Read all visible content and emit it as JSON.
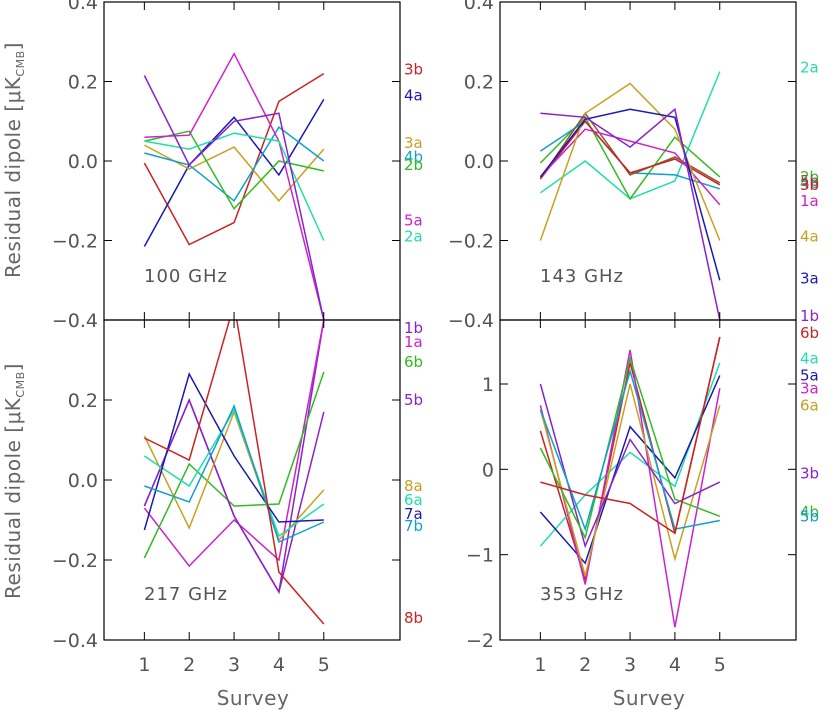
{
  "figure": {
    "xlabel": "Survey",
    "ylabel": "Residual dipole [μK",
    "ylabel_sub": "CMB",
    "ylabel_end": "]"
  },
  "chart_data": [
    {
      "type": "line",
      "title": "100 GHz",
      "x": [
        1,
        2,
        3,
        4,
        5
      ],
      "ylim": [
        -0.4,
        0.4
      ],
      "yticks": [
        -0.4,
        -0.2,
        0.0,
        0.2,
        0.4
      ],
      "ytick_labels": [
        "−0.4",
        "−0.2",
        "0.0",
        "0.2",
        "0.4"
      ],
      "xticks": [
        1,
        2,
        3,
        4,
        5
      ],
      "xtick_labels": [
        "",
        "",
        "",
        "",
        ""
      ],
      "series": [
        {
          "name": "3b",
          "color": "#cc2222",
          "values": [
            -0.005,
            -0.21,
            -0.155,
            0.15,
            0.22
          ],
          "label_y": 0.23
        },
        {
          "name": "4a",
          "color": "#1a1ab0",
          "values": [
            -0.215,
            -0.01,
            0.11,
            -0.035,
            0.155
          ],
          "label_y": 0.165
        },
        {
          "name": "3a",
          "color": "#c9a020",
          "values": [
            0.04,
            -0.02,
            0.035,
            -0.1,
            0.03
          ],
          "label_y": 0.045
        },
        {
          "name": "4b",
          "color": "#11a0cc",
          "values": [
            0.02,
            -0.01,
            -0.1,
            0.085,
            0.0
          ],
          "label_y": 0.01
        },
        {
          "name": "2b",
          "color": "#33bb22",
          "values": [
            0.05,
            0.075,
            -0.12,
            0.0,
            -0.025
          ],
          "label_y": -0.01
        },
        {
          "name": "5a",
          "color": "#cc22cc",
          "values": [
            0.06,
            0.065,
            0.27,
            0.05,
            -0.4
          ],
          "label_y": -0.15
        },
        {
          "name": "2a",
          "color": "#22ddaa",
          "values": [
            0.05,
            0.03,
            0.07,
            0.05,
            -0.2
          ],
          "label_y": -0.19
        },
        {
          "name": "",
          "color": "#8822cc",
          "values": [
            0.215,
            -0.01,
            0.1,
            0.12,
            -0.4
          ],
          "label_y": null
        }
      ]
    },
    {
      "type": "line",
      "title": "143 GHz",
      "x": [
        1,
        2,
        3,
        4,
        5
      ],
      "ylim": [
        -0.4,
        0.4
      ],
      "yticks": [
        -0.4,
        -0.2,
        0.0,
        0.2,
        0.4
      ],
      "ytick_labels": [
        "−0.4",
        "−0.2",
        "0.0",
        "0.2",
        "0.4"
      ],
      "xticks": [
        1,
        2,
        3,
        4,
        5
      ],
      "xtick_labels": [
        "",
        "",
        "",
        "",
        ""
      ],
      "series": [
        {
          "name": "2a",
          "color": "#22ddaa",
          "values": [
            -0.08,
            0.0,
            -0.095,
            -0.05,
            0.225
          ],
          "label_y": 0.235
        },
        {
          "name": "2b",
          "color": "#33bb22",
          "values": [
            -0.005,
            0.11,
            -0.095,
            0.06,
            -0.04
          ],
          "label_y": -0.04
        },
        {
          "name": "4b",
          "color": "#11a0cc",
          "values": [
            0.025,
            0.1,
            -0.03,
            -0.035,
            -0.07
          ],
          "label_y": -0.055
        },
        {
          "name": "5b",
          "color": "#8b5a2b",
          "values": [
            -0.045,
            0.12,
            -0.035,
            0.01,
            -0.055
          ],
          "label_y": -0.05
        },
        {
          "name": "3b",
          "color": "#cc2222",
          "values": [
            -0.045,
            0.1,
            -0.03,
            0.005,
            -0.06
          ],
          "label_y": -0.06
        },
        {
          "name": "1a",
          "color": "#cc22cc",
          "values": [
            -0.04,
            0.08,
            0.05,
            0.02,
            -0.11
          ],
          "label_y": -0.1
        },
        {
          "name": "4a",
          "color": "#c9a020",
          "values": [
            -0.2,
            0.12,
            0.195,
            0.08,
            -0.2
          ],
          "label_y": -0.19
        },
        {
          "name": "3a",
          "color": "#1a1ab0",
          "values": [
            -0.04,
            0.105,
            0.13,
            0.11,
            -0.3
          ],
          "label_y": -0.295
        },
        {
          "name": "1b",
          "color": "#8822cc",
          "values": [
            0.12,
            0.11,
            0.035,
            0.13,
            -0.4
          ],
          "label_y": -0.39
        }
      ]
    },
    {
      "type": "line",
      "title": "217 GHz",
      "x": [
        1,
        2,
        3,
        4,
        5
      ],
      "ylim": [
        -0.4,
        0.4
      ],
      "yticks": [
        -0.4,
        -0.2,
        0.0,
        0.2,
        0.4
      ],
      "ytick_labels": [
        "−0.4",
        "−0.2",
        "0.0",
        "0.2",
        ""
      ],
      "xticks": [
        1,
        2,
        3,
        4,
        5
      ],
      "xtick_labels": [
        "1",
        "2",
        "3",
        "4",
        "5"
      ],
      "series": [
        {
          "name": "1b",
          "color": "#8822cc",
          "values": [
            -0.065,
            0.2,
            -0.09,
            -0.28,
            0.4
          ],
          "label_y": 0.38
        },
        {
          "name": "1a",
          "color": "#cc22cc",
          "values": [
            -0.07,
            -0.215,
            -0.1,
            -0.2,
            0.4
          ],
          "label_y": 0.345
        },
        {
          "name": "6b",
          "color": "#33bb22",
          "values": [
            -0.195,
            0.04,
            -0.065,
            -0.06,
            0.27
          ],
          "label_y": 0.295
        },
        {
          "name": "5b",
          "color": "#8822cc",
          "values": [
            -0.065,
            0.2,
            -0.09,
            -0.28,
            0.17
          ],
          "label_y": 0.2
        },
        {
          "name": "8a",
          "color": "#c9a020",
          "values": [
            0.11,
            -0.12,
            0.17,
            -0.15,
            -0.025
          ],
          "label_y": -0.015
        },
        {
          "name": "6a",
          "color": "#22ddaa",
          "values": [
            0.06,
            -0.015,
            0.175,
            -0.14,
            -0.06
          ],
          "label_y": -0.05
        },
        {
          "name": "7a",
          "color": "#1a1ab0",
          "values": [
            -0.125,
            0.265,
            0.06,
            -0.105,
            -0.1
          ],
          "label_y": -0.085
        },
        {
          "name": "7b",
          "color": "#11a0cc",
          "values": [
            -0.015,
            -0.055,
            0.185,
            -0.155,
            -0.105
          ],
          "label_y": -0.115
        },
        {
          "name": "8b",
          "color": "#cc2222",
          "values": [
            0.105,
            0.05,
            0.44,
            -0.23,
            -0.36
          ],
          "label_y": -0.345
        }
      ]
    },
    {
      "type": "line",
      "title": "353 GHz",
      "x": [
        1,
        2,
        3,
        4,
        5
      ],
      "ylim": [
        -2,
        1.75
      ],
      "yticks": [
        -2,
        -1,
        0,
        1
      ],
      "ytick_labels": [
        "−2",
        "−1",
        "0",
        "1"
      ],
      "xticks": [
        1,
        2,
        3,
        4,
        5
      ],
      "xtick_labels": [
        "1",
        "2",
        "3",
        "4",
        "5"
      ],
      "series": [
        {
          "name": "6b",
          "color": "#cc2222",
          "values": [
            0.45,
            -1.3,
            1.25,
            -0.75,
            1.55
          ],
          "label_y": 1.6
        },
        {
          "name": "4a",
          "color": "#22ddaa",
          "values": [
            -0.9,
            -0.3,
            0.2,
            -0.2,
            1.25
          ],
          "label_y": 1.3
        },
        {
          "name": "5a",
          "color": "#1a1ab0",
          "values": [
            -0.5,
            -1.1,
            0.5,
            -0.1,
            1.1
          ],
          "label_y": 1.1
        },
        {
          "name": "3a",
          "color": "#cc22cc",
          "values": [
            0.75,
            -1.35,
            1.4,
            -1.85,
            0.95
          ],
          "label_y": 0.95
        },
        {
          "name": "6a",
          "color": "#c9a020",
          "values": [
            0.7,
            -1.25,
            1.0,
            -1.05,
            0.75
          ],
          "label_y": 0.75
        },
        {
          "name": "3b",
          "color": "#8822cc",
          "values": [
            1.0,
            -0.9,
            0.35,
            -0.4,
            -0.15
          ],
          "label_y": -0.05
        },
        {
          "name": "4b",
          "color": "#33bb22",
          "values": [
            0.25,
            -0.8,
            1.3,
            -0.35,
            -0.55
          ],
          "label_y": -0.5
        },
        {
          "name": "5b",
          "color": "#11a0cc",
          "values": [
            0.7,
            -0.7,
            1.15,
            -0.7,
            -0.6
          ],
          "label_y": -0.55
        },
        {
          "name": "",
          "color": "#cc2222",
          "values": [
            -0.15,
            -0.3,
            -0.4,
            -0.75,
            1.55
          ],
          "label_y": null
        }
      ]
    }
  ]
}
